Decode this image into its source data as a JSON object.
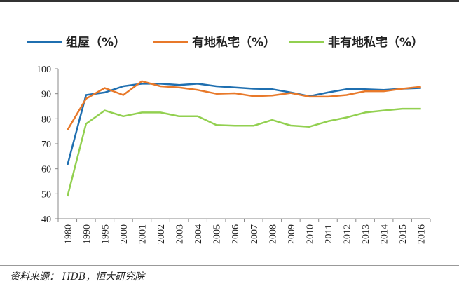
{
  "chart_data": {
    "type": "line",
    "title": "",
    "xlabel": "",
    "ylabel": "",
    "ylim": [
      40,
      100
    ],
    "yticks": [
      40,
      50,
      60,
      70,
      80,
      90,
      100
    ],
    "grid": false,
    "legend_placement": "top",
    "categories": [
      "1980",
      "1990",
      "1995",
      "2000",
      "2001",
      "2002",
      "2003",
      "2004",
      "2005",
      "2006",
      "2007",
      "2008",
      "2009",
      "2010",
      "2011",
      "2012",
      "2013",
      "2014",
      "2015",
      "2016"
    ],
    "series": [
      {
        "name": "组屋（%）",
        "color": "#1f6fb0",
        "values": [
          61.5,
          89.5,
          90.5,
          93,
          94,
          94,
          93.5,
          94,
          93,
          92.5,
          92,
          91.8,
          90.5,
          89,
          90.5,
          91.8,
          91.8,
          91.5,
          92,
          92.3
        ]
      },
      {
        "name": "有地私宅（%）",
        "color": "#e8792a",
        "values": [
          75.5,
          88,
          92.3,
          89.5,
          95,
          93,
          92.5,
          91.5,
          90,
          90.2,
          89,
          89.3,
          90.3,
          88.8,
          88.8,
          89.5,
          91,
          91,
          92,
          92.8
        ]
      },
      {
        "name": "非有地私宅（%）",
        "color": "#92d050",
        "values": [
          49,
          78,
          83.3,
          81,
          82.5,
          82.5,
          81,
          81,
          77.5,
          77.2,
          77.2,
          79.5,
          77.3,
          76.8,
          79,
          80.5,
          82.5,
          83.3,
          84,
          84
        ]
      }
    ]
  },
  "source": "资料来源：  HDB，恒大研究院"
}
